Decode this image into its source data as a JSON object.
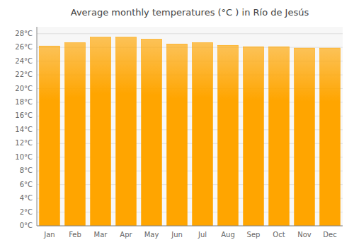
{
  "chart_data": {
    "type": "bar",
    "title": "Average monthly temperatures (°C ) in Río de Jesús",
    "categories": [
      "Jan",
      "Feb",
      "Mar",
      "Apr",
      "May",
      "Jun",
      "Jul",
      "Aug",
      "Sep",
      "Oct",
      "Nov",
      "Dec"
    ],
    "values": [
      26.2,
      26.7,
      27.5,
      27.5,
      27.2,
      26.5,
      26.7,
      26.3,
      26.1,
      26.1,
      25.9,
      25.9
    ],
    "color": "#FFA500",
    "ylim": [
      0,
      29
    ],
    "yticks": [
      {
        "value": 0,
        "label": "0°C"
      },
      {
        "value": 2,
        "label": "2°C"
      },
      {
        "value": 4,
        "label": "4°C"
      },
      {
        "value": 6,
        "label": "6°C"
      },
      {
        "value": 8,
        "label": "8°C"
      },
      {
        "value": 10,
        "label": "10°C"
      },
      {
        "value": 12,
        "label": "12°C"
      },
      {
        "value": 14,
        "label": "14°C"
      },
      {
        "value": 16,
        "label": "16°C"
      },
      {
        "value": 18,
        "label": "18°C"
      },
      {
        "value": 20,
        "label": "20°C"
      },
      {
        "value": 22,
        "label": "22°C"
      },
      {
        "value": 24,
        "label": "24°C"
      },
      {
        "value": 26,
        "label": "26°C"
      },
      {
        "value": 28,
        "label": "28°C"
      }
    ],
    "grid": true
  }
}
